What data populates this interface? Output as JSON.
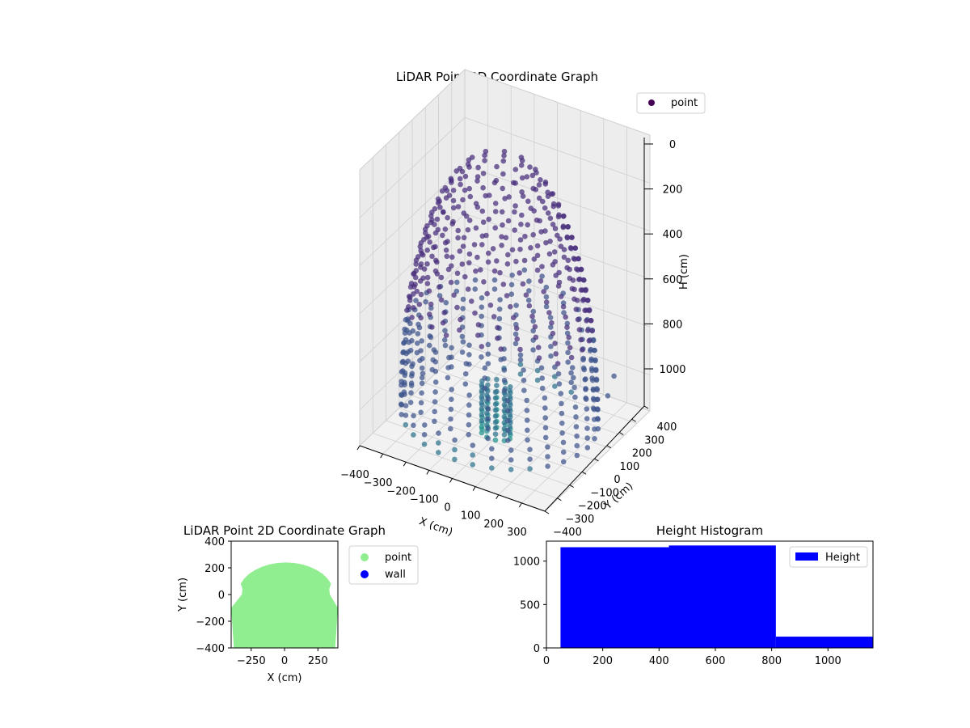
{
  "chart_data": [
    {
      "type": "scatter",
      "title": "LiDAR Point 3D Coordinate Graph",
      "xlabel": "X (cm)",
      "ylabel": "Y (cm)",
      "zlabel": "H (cm)",
      "xlim": [
        -400,
        400
      ],
      "ylim": [
        -400,
        400
      ],
      "zlim": [
        1150,
        0
      ],
      "z_inverted": true,
      "xticks": [
        "−400",
        "−300",
        "−200",
        "−100",
        "0",
        "100",
        "200",
        "300"
      ],
      "yticks": [
        "−400",
        "−300",
        "−200",
        "−100",
        "0",
        "100",
        "200",
        "300",
        "400"
      ],
      "zticks": [
        "0",
        "200",
        "400",
        "600",
        "800",
        "1000"
      ],
      "legend": [
        {
          "label": "point",
          "color": "#440154"
        }
      ],
      "legend_position": "top-right",
      "colormap": "viridis",
      "shape": "dome of points spanning X −380..380, Y −380..250, H 0..1100 (dense near the ground center)",
      "outliers": [
        {
          "x": 330,
          "y": 250,
          "h": 950
        },
        {
          "x": 360,
          "y": 150,
          "h": 970
        }
      ],
      "grid": true
    },
    {
      "type": "scatter",
      "title": "LiDAR Point 2D Coordinate Graph",
      "xlabel": "X (cm)",
      "ylabel": "Y (cm)",
      "xlim": [
        -400,
        400
      ],
      "ylim": [
        -400,
        400
      ],
      "xticks": [
        "−250",
        "0",
        "250"
      ],
      "yticks": [
        "−400",
        "−200",
        "0",
        "200",
        "400"
      ],
      "series": [
        {
          "name": "point",
          "color": "#90ee90"
        },
        {
          "name": "wall",
          "color": "#0000ff"
        }
      ],
      "legend_position": "outside-right"
    },
    {
      "type": "bar",
      "title": "Height Histogram",
      "bins": [
        [
          50,
          435
        ],
        [
          435,
          815
        ],
        [
          815,
          1160
        ]
      ],
      "values": [
        1160,
        1180,
        130
      ],
      "xlim": [
        0,
        1160
      ],
      "ylim": [
        0,
        1230
      ],
      "xticks": [
        "0",
        "200",
        "400",
        "600",
        "800",
        "1000"
      ],
      "yticks": [
        "0",
        "500",
        "1000"
      ],
      "series": [
        {
          "name": "Height",
          "color": "#0000ff"
        }
      ],
      "legend_position": "top-right"
    }
  ]
}
